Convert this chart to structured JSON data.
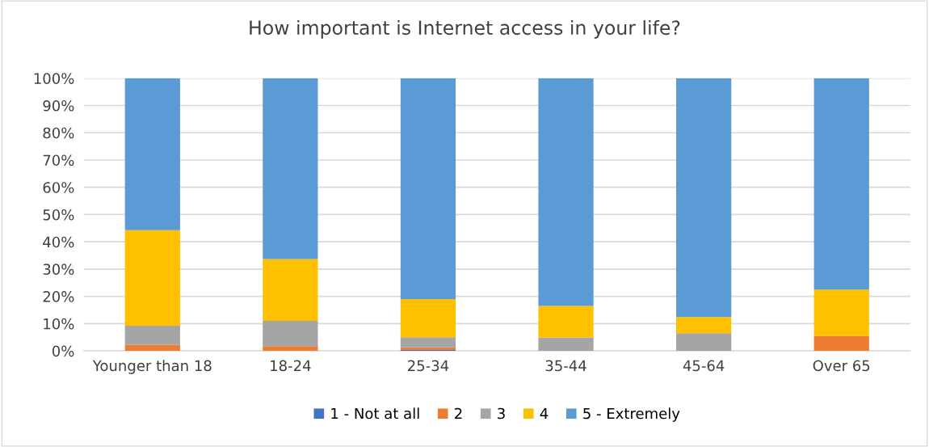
{
  "chart_data": {
    "type": "bar",
    "stacked": true,
    "title": "How important is Internet access in your life?",
    "categories": [
      "Younger than 18",
      "18-24",
      "25-34",
      "35-44",
      "45-64",
      "Over 65"
    ],
    "series": [
      {
        "name": "1 - Not at all",
        "color": "#4472c4",
        "values": [
          0,
          0,
          0.3,
          0,
          0,
          0
        ]
      },
      {
        "name": "2",
        "color": "#ed7d31",
        "values": [
          2.2,
          1.7,
          1.0,
          0,
          0,
          5.5
        ]
      },
      {
        "name": "3",
        "color": "#a5a5a5",
        "values": [
          7.0,
          9.3,
          3.7,
          4.9,
          6.5,
          0
        ]
      },
      {
        "name": "4",
        "color": "#ffc000",
        "values": [
          35.1,
          22.7,
          14.0,
          11.6,
          5.9,
          17.0
        ]
      },
      {
        "name": "5 - Extremely",
        "color": "#5b9bd5",
        "values": [
          55.7,
          66.3,
          81.0,
          83.5,
          87.6,
          77.5
        ]
      }
    ],
    "ylim": [
      0,
      100
    ],
    "yticks": [
      {
        "value": 0,
        "label": "0%"
      },
      {
        "value": 10,
        "label": "10%"
      },
      {
        "value": 20,
        "label": "20%"
      },
      {
        "value": 30,
        "label": "30%"
      },
      {
        "value": 40,
        "label": "40%"
      },
      {
        "value": 50,
        "label": "50%"
      },
      {
        "value": 60,
        "label": "60%"
      },
      {
        "value": 70,
        "label": "70%"
      },
      {
        "value": 80,
        "label": "80%"
      },
      {
        "value": 90,
        "label": "90%"
      },
      {
        "value": 100,
        "label": "100%"
      }
    ],
    "grid": "y",
    "legend": "bottom"
  }
}
